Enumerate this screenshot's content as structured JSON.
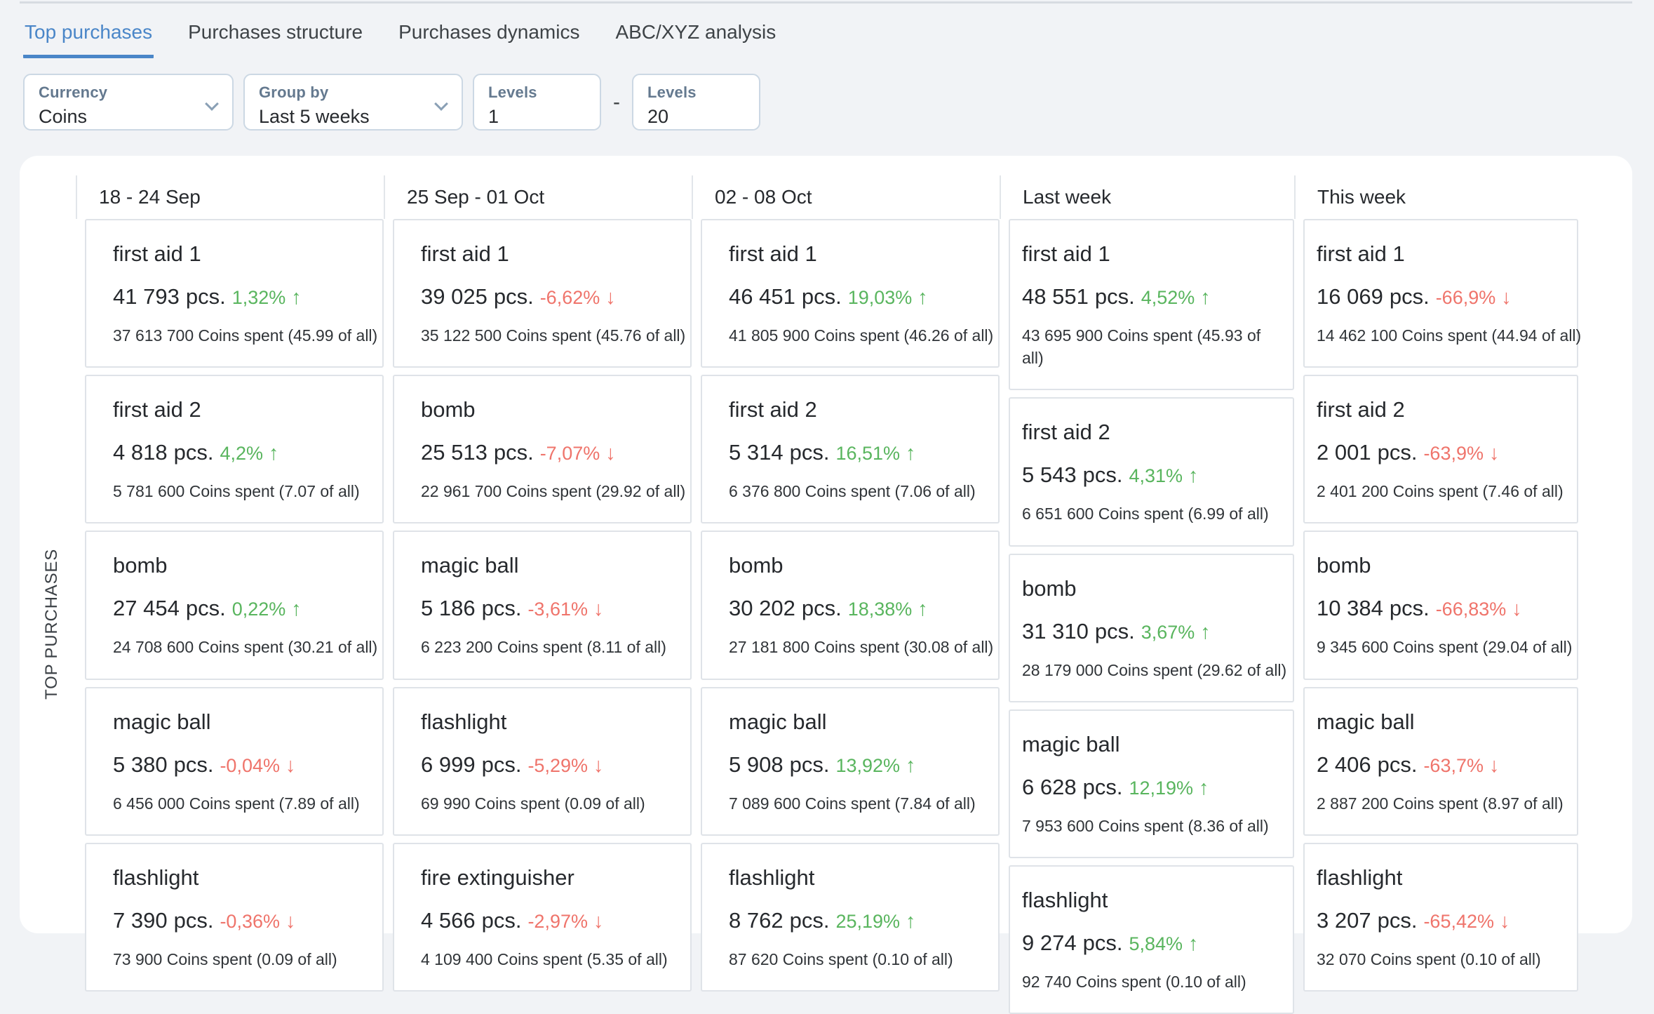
{
  "tabs": [
    {
      "label": "Top purchases",
      "active": true
    },
    {
      "label": "Purchases structure",
      "active": false
    },
    {
      "label": "Purchases dynamics",
      "active": false
    },
    {
      "label": "ABC/XYZ analysis",
      "active": false
    }
  ],
  "filters": {
    "currency": {
      "label": "Currency",
      "value": "Coins"
    },
    "group_by": {
      "label": "Group by",
      "value": "Last 5 weeks"
    },
    "levels_from": {
      "label": "Levels",
      "value": "1"
    },
    "range_separator": "-",
    "levels_to": {
      "label": "Levels",
      "value": "20"
    }
  },
  "section_label": "TOP PURCHASES",
  "icons": {
    "up": "↑",
    "down": "↓",
    "chevron": "chevron-down"
  },
  "colors": {
    "accent_blue": "#4a86c8",
    "positive_green": "#59b55e",
    "negative_red": "#ef746b",
    "page_background": "#f1f3f6",
    "card_border": "#dfe3e8"
  },
  "columns": [
    {
      "header": "18 - 24 Sep",
      "cards": [
        {
          "title": "first aid 1",
          "qty": "41 793",
          "unit": "pcs.",
          "change": "1,32%",
          "direction": "up",
          "spent": "37 613 700 Coins spent (45.99 of all)"
        },
        {
          "title": "first aid 2",
          "qty": "4 818",
          "unit": "pcs.",
          "change": "4,2%",
          "direction": "up",
          "spent": "5 781 600 Coins spent (7.07 of all)"
        },
        {
          "title": "bomb",
          "qty": "27 454",
          "unit": "pcs.",
          "change": "0,22%",
          "direction": "up",
          "spent": "24 708 600 Coins spent (30.21 of all)"
        },
        {
          "title": "magic ball",
          "qty": "5 380",
          "unit": "pcs.",
          "change": "-0,04%",
          "direction": "down",
          "spent": "6 456 000 Coins spent (7.89 of all)"
        },
        {
          "title": "flashlight",
          "qty": "7 390",
          "unit": "pcs.",
          "change": "-0,36%",
          "direction": "down",
          "spent": "73 900 Coins spent (0.09 of all)"
        }
      ]
    },
    {
      "header": "25 Sep - 01 Oct",
      "cards": [
        {
          "title": "first aid 1",
          "qty": "39 025",
          "unit": "pcs.",
          "change": "-6,62%",
          "direction": "down",
          "spent": "35 122 500 Coins spent (45.76 of all)"
        },
        {
          "title": "bomb",
          "qty": "25 513",
          "unit": "pcs.",
          "change": "-7,07%",
          "direction": "down",
          "spent": "22 961 700 Coins spent (29.92 of all)"
        },
        {
          "title": "magic ball",
          "qty": "5 186",
          "unit": "pcs.",
          "change": "-3,61%",
          "direction": "down",
          "spent": "6 223 200 Coins spent (8.11 of all)"
        },
        {
          "title": "flashlight",
          "qty": "6 999",
          "unit": "pcs.",
          "change": "-5,29%",
          "direction": "down",
          "spent": "69 990 Coins spent (0.09 of all)"
        },
        {
          "title": "fire extinguisher",
          "qty": "4 566",
          "unit": "pcs.",
          "change": "-2,97%",
          "direction": "down",
          "spent": "4 109 400 Coins spent (5.35 of all)"
        }
      ]
    },
    {
      "header": "02 - 08 Oct",
      "cards": [
        {
          "title": "first aid 1",
          "qty": "46 451",
          "unit": "pcs.",
          "change": "19,03%",
          "direction": "up",
          "spent": "41 805 900 Coins spent (46.26 of all)"
        },
        {
          "title": "first aid 2",
          "qty": "5 314",
          "unit": "pcs.",
          "change": "16,51%",
          "direction": "up",
          "spent": "6 376 800 Coins spent (7.06 of all)"
        },
        {
          "title": "bomb",
          "qty": "30 202",
          "unit": "pcs.",
          "change": "18,38%",
          "direction": "up",
          "spent": "27 181 800 Coins spent (30.08 of all)"
        },
        {
          "title": "magic ball",
          "qty": "5 908",
          "unit": "pcs.",
          "change": "13,92%",
          "direction": "up",
          "spent": "7 089 600 Coins spent (7.84 of all)"
        },
        {
          "title": "flashlight",
          "qty": "8 762",
          "unit": "pcs.",
          "change": "25,19%",
          "direction": "up",
          "spent": "87 620 Coins spent (0.10 of all)"
        }
      ]
    },
    {
      "header": "Last week",
      "cards": [
        {
          "title": "first aid 1",
          "qty": "48 551",
          "unit": "pcs.",
          "change": "4,52%",
          "direction": "up",
          "spent": "43 695 900 Coins spent (45.93 of all)",
          "two_line": true
        },
        {
          "title": "first aid 2",
          "qty": "5 543",
          "unit": "pcs.",
          "change": "4,31%",
          "direction": "up",
          "spent": "6 651 600 Coins spent (6.99 of all)"
        },
        {
          "title": "bomb",
          "qty": "31 310",
          "unit": "pcs.",
          "change": "3,67%",
          "direction": "up",
          "spent": "28 179 000 Coins spent (29.62 of all)"
        },
        {
          "title": "magic ball",
          "qty": "6 628",
          "unit": "pcs.",
          "change": "12,19%",
          "direction": "up",
          "spent": "7 953 600 Coins spent (8.36 of all)"
        },
        {
          "title": "flashlight",
          "qty": "9 274",
          "unit": "pcs.",
          "change": "5,84%",
          "direction": "up",
          "spent": "92 740 Coins spent (0.10 of all)"
        }
      ]
    },
    {
      "header": "This week",
      "cards": [
        {
          "title": "first aid 1",
          "qty": "16 069",
          "unit": "pcs.",
          "change": "-66,9%",
          "direction": "down",
          "spent": "14 462 100 Coins spent (44.94 of all)"
        },
        {
          "title": "first aid 2",
          "qty": "2 001",
          "unit": "pcs.",
          "change": "-63,9%",
          "direction": "down",
          "spent": "2 401 200 Coins spent (7.46 of all)"
        },
        {
          "title": "bomb",
          "qty": "10 384",
          "unit": "pcs.",
          "change": "-66,83%",
          "direction": "down",
          "spent": "9 345 600 Coins spent (29.04 of all)"
        },
        {
          "title": "magic ball",
          "qty": "2 406",
          "unit": "pcs.",
          "change": "-63,7%",
          "direction": "down",
          "spent": "2 887 200 Coins spent (8.97 of all)"
        },
        {
          "title": "flashlight",
          "qty": "3 207",
          "unit": "pcs.",
          "change": "-65,42%",
          "direction": "down",
          "spent": "32 070 Coins spent (0.10 of all)"
        }
      ]
    }
  ]
}
